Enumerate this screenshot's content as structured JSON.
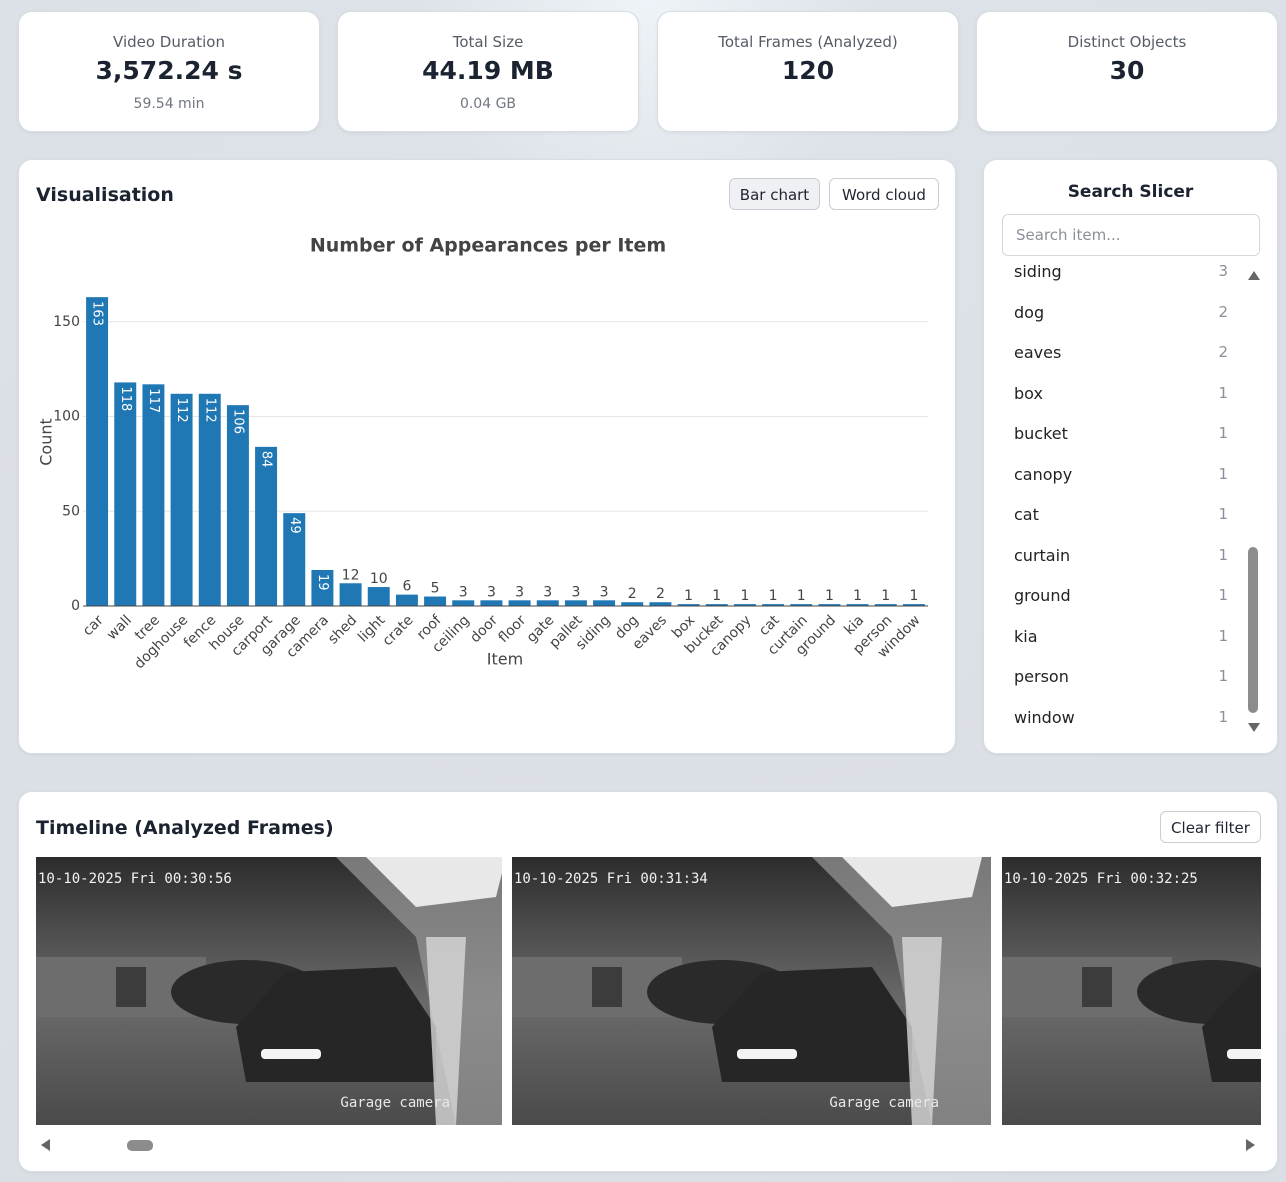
{
  "kpis": [
    {
      "label": "Video Duration",
      "value": "3,572.24 s",
      "sub": "59.54 min"
    },
    {
      "label": "Total Size",
      "value": "44.19 MB",
      "sub": "0.04 GB"
    },
    {
      "label": "Total Frames (Analyzed)",
      "value": "120"
    },
    {
      "label": "Distinct Objects",
      "value": "30"
    }
  ],
  "visualisation": {
    "title": "Visualisation",
    "buttons": [
      "Bar chart",
      "Word cloud"
    ]
  },
  "chart_data": {
    "type": "bar",
    "title": "Number of Appearances per Item",
    "x_label": "Item",
    "y_label": "Count",
    "categories": [
      "car",
      "wall",
      "tree",
      "doghouse",
      "fence",
      "house",
      "carport",
      "garage",
      "camera",
      "shed",
      "light",
      "crate",
      "roof",
      "ceiling",
      "door",
      "floor",
      "gate",
      "pallet",
      "siding",
      "dog",
      "eaves",
      "box",
      "bucket",
      "canopy",
      "cat",
      "curtain",
      "ground",
      "kia",
      "person",
      "window"
    ],
    "values": [
      163,
      118,
      117,
      112,
      112,
      106,
      84,
      49,
      19,
      12,
      10,
      6,
      5,
      3,
      3,
      3,
      3,
      3,
      3,
      2,
      2,
      1,
      1,
      1,
      1,
      1,
      1,
      1,
      1,
      1
    ],
    "color": "#1f77b4",
    "ylim": [
      0,
      171
    ],
    "yticks": [
      0,
      50,
      100,
      150
    ],
    "grid": true
  },
  "slicer": {
    "title": "Search Slicer",
    "placeholder": "Search item..."
  },
  "timeline": {
    "title": "Timeline (Analyzed Frames)",
    "button": "Clear filter",
    "frames": [
      {
        "timestamp": "10-10-2025 Fri 00:30:56",
        "caption": "Garage camera"
      },
      {
        "timestamp": "10-10-2025 Fri 00:31:34",
        "caption": "Garage camera"
      },
      {
        "timestamp": "10-10-2025 Fri 00:32:25"
      }
    ]
  }
}
